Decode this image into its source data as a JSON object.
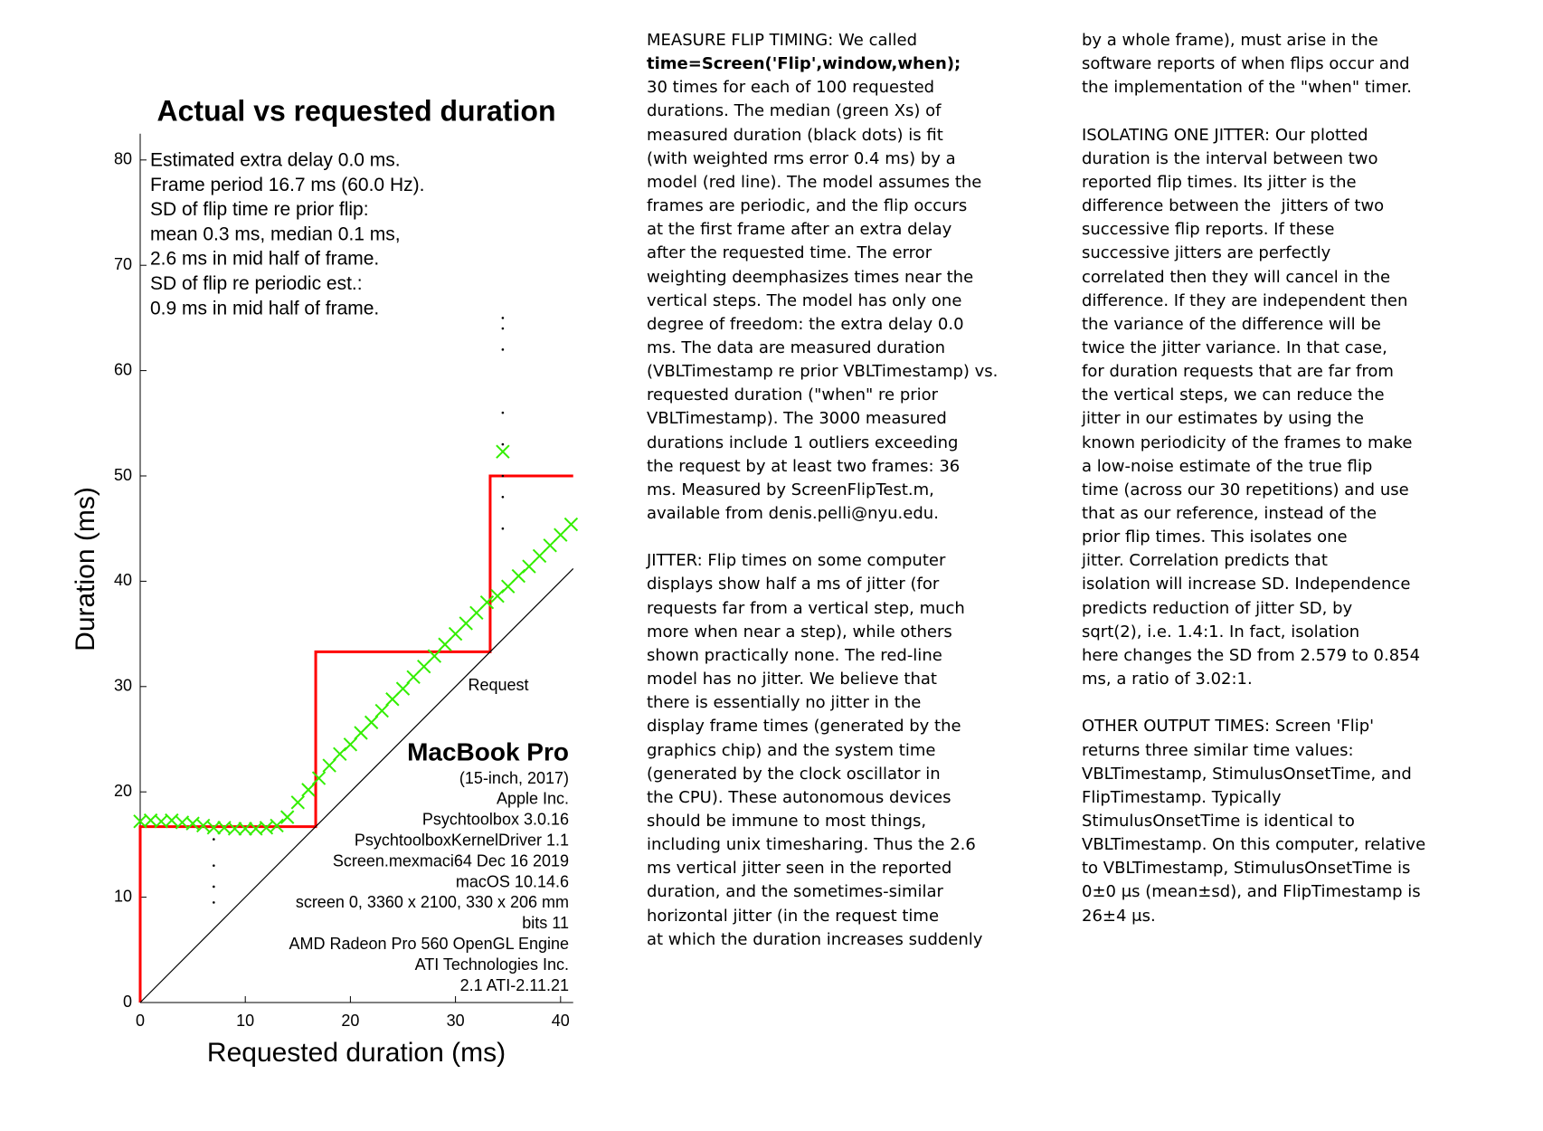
{
  "chart_data": {
    "type": "line",
    "title": "Actual vs requested duration",
    "xlabel": "Requested duration (ms)",
    "ylabel": "Duration (ms)",
    "xlim": [
      0,
      41.2
    ],
    "ylim": [
      0,
      82.5
    ],
    "xticks": [
      0,
      10,
      20,
      30,
      40
    ],
    "yticks": [
      0,
      10,
      20,
      30,
      40,
      50,
      60,
      70,
      80
    ],
    "series": [
      {
        "mode": "lines",
        "color": "#ff0000",
        "x": [
          0,
          0,
          16.7,
          16.7,
          33.3,
          33.3,
          41.2
        ],
        "values": [
          0,
          16.7,
          16.7,
          33.3,
          33.3,
          50,
          50
        ]
      },
      {
        "mode": "lines",
        "color": "#000000",
        "x": [
          0,
          41.2
        ],
        "values": [
          0,
          41.2
        ]
      },
      {
        "mode": "markers-x",
        "color": "#33ee00",
        "x": [
          0,
          1,
          2,
          3,
          4,
          5,
          6,
          7,
          8,
          9,
          10,
          11,
          12,
          13,
          14,
          15,
          16,
          17,
          18,
          19,
          20,
          21,
          22,
          23,
          24,
          25,
          26,
          27,
          28,
          29,
          30,
          31,
          32,
          33,
          34,
          34.5,
          35,
          36,
          37,
          38,
          39,
          40,
          41
        ],
        "values": [
          17.2,
          17.3,
          17.2,
          17.3,
          17.1,
          17.0,
          16.8,
          16.6,
          16.6,
          16.5,
          16.5,
          16.5,
          16.6,
          16.8,
          17.6,
          19.0,
          20.2,
          21.3,
          22.5,
          23.6,
          24.5,
          25.6,
          26.6,
          27.7,
          28.8,
          29.8,
          30.9,
          31.9,
          32.9,
          34.0,
          35.0,
          36.0,
          37.0,
          38.0,
          38.6,
          52.3,
          39.5,
          40.5,
          41.4,
          42.4,
          43.4,
          44.4,
          45.4
        ]
      },
      {
        "mode": "markers-dot",
        "color": "#000000",
        "x": [
          7,
          7,
          7,
          7,
          34.5,
          34.5,
          34.5,
          34.5,
          34.5,
          34.5,
          34.5,
          34.5
        ],
        "values": [
          15.5,
          13,
          11,
          9.5,
          45,
          48,
          50,
          53,
          56,
          62,
          64,
          65
        ]
      }
    ],
    "info_text": [
      "Estimated extra delay 0.0 ms.",
      "Frame period 16.7 ms (60.0 Hz).",
      "SD of flip time re prior flip:",
      "mean 0.3 ms, median 0.1 ms,",
      "2.6 ms in mid half of frame.",
      "SD of flip re periodic est.:",
      "0.9 ms in mid half of frame."
    ],
    "request_label": "Request",
    "device_name": "MacBook Pro",
    "device_info": [
      "(15-inch, 2017)",
      "Apple Inc.",
      "Psychtoolbox 3.0.16",
      "PsychtoolboxKernelDriver 1.1",
      "Screen.mexmaci64 Dec 16 2019",
      "macOS 10.14.6",
      "screen 0, 3360 x 2100, 330 x 206 mm",
      "bits 11",
      "AMD Radeon Pro 560 OpenGL Engine",
      "ATI Technologies Inc.",
      "2.1 ATI-2.11.21"
    ]
  },
  "text_columns": [
    [
      [
        "MEASURE FLIP TIMING: We called",
        "time=Screen('Flip',window,when);",
        "30 times for each of 100 requested",
        "durations. The median (green Xs) of",
        "measured duration (black dots) is fit",
        "(with weighted rms error 0.4 ms) by a",
        "model (red line). The model assumes the",
        "frames are periodic, and the flip occurs",
        "at the first frame after an extra delay",
        "after the requested time. The error",
        "weighting deemphasizes times near the",
        "vertical steps. The model has only one",
        "degree of freedom: the extra delay 0.0",
        "ms. The data are measured duration",
        "(VBLTimestamp re prior VBLTimestamp) vs.",
        "requested duration (\"when\" re prior",
        "VBLTimestamp). The 3000 measured",
        "durations include 1 outliers exceeding",
        "the request by at least two frames: 36",
        "ms. Measured by ScreenFlipTest.m,",
        "available from denis.pelli@nyu.edu."
      ],
      [
        "JITTER: Flip times on some computer",
        "displays show half a ms of jitter (for",
        "requests far from a vertical step, much",
        "more when near a step), while others",
        "shown practically none. The red-line",
        "model has no jitter. We believe that",
        "there is essentially no jitter in the",
        "display frame times (generated by the",
        "graphics chip) and the system time",
        "(generated by the clock oscillator in",
        "the CPU). These autonomous devices",
        "should be immune to most things,",
        "including unix timesharing. Thus the 2.6",
        "ms vertical jitter seen in the reported",
        "duration, and the sometimes-similar",
        "horizontal jitter (in the request time",
        "at which the duration increases suddenly"
      ]
    ],
    [
      [
        "by a whole frame), must arise in the",
        "software reports of when flips occur and",
        "the implementation of the \"when\" timer."
      ],
      [
        "ISOLATING ONE JITTER: Our plotted",
        "duration is the interval between two",
        "reported flip times. Its jitter is the",
        "difference between the  jitters of two",
        "successive flip reports. If these",
        "successive jitters are perfectly",
        "correlated then they will cancel in the",
        "difference. If they are independent then",
        "the variance of the difference will be",
        "twice the jitter variance. In that case,",
        "for duration requests that are far from",
        "the vertical steps, we can reduce the",
        "jitter in our estimates by using the",
        "known periodicity of the frames to make",
        "a low-noise estimate of the true flip",
        "time (across our 30 repetitions) and use",
        "that as our reference, instead of the",
        "prior flip times. This isolates one",
        "jitter. Correlation predicts that",
        "isolation will increase SD. Independence",
        "predicts reduction of jitter SD, by",
        "sqrt(2), i.e. 1.4:1. In fact, isolation",
        "here changes the SD from 2.579 to 0.854",
        "ms, a ratio of 3.02:1."
      ],
      [
        "OTHER OUTPUT TIMES: Screen 'Flip'",
        "returns three similar time values:",
        "VBLTimestamp, StimulusOnsetTime, and",
        "FlipTimestamp. Typically",
        "StimulusOnsetTime is identical to",
        "VBLTimestamp. On this computer, relative",
        "to VBLTimestamp, StimulusOnsetTime is",
        "0±0 μs (mean±sd), and FlipTimestamp is",
        "26±4 μs."
      ]
    ]
  ]
}
